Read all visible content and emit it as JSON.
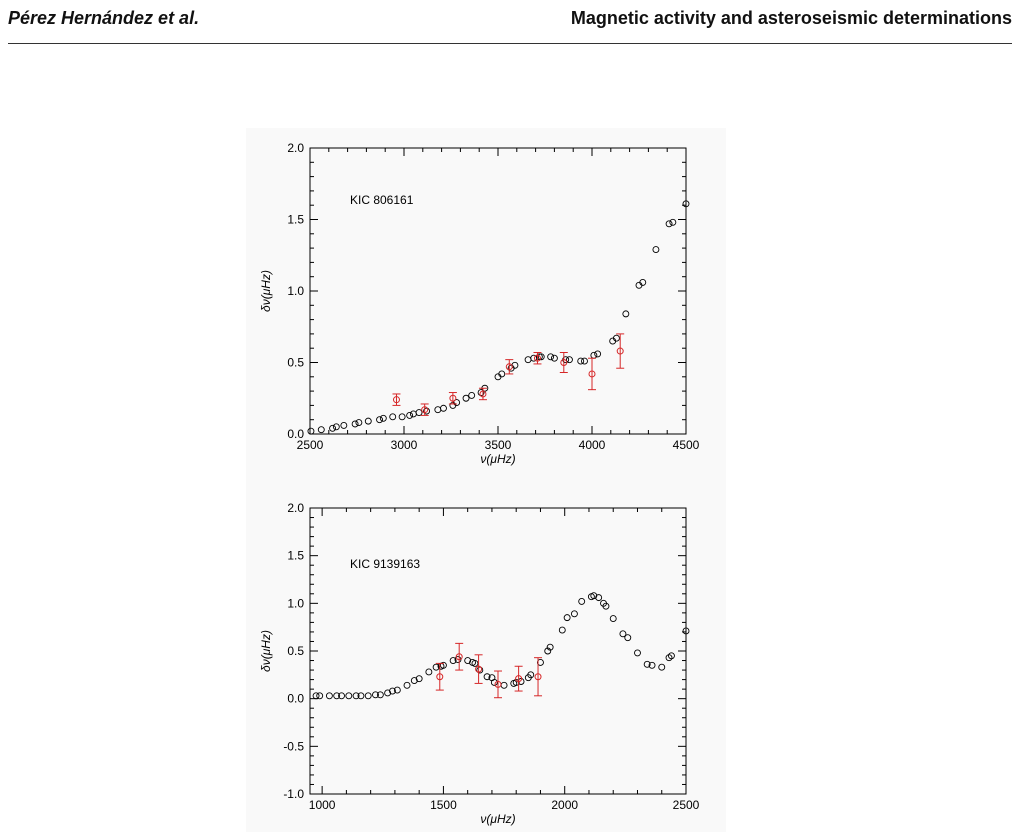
{
  "header": {
    "left": "Pérez Hernández et al.",
    "right": "Magnetic activity and asteroseismic determinations"
  },
  "colors": {
    "model": "#000000",
    "observed": "#d62728"
  },
  "chart_data": [
    {
      "type": "scatter",
      "label": "KIC 806161",
      "xlabel": "ν(μHz)",
      "ylabel": "δν(μHz)",
      "xlim": [
        2500,
        4500
      ],
      "ylim": [
        0.0,
        2.0
      ],
      "xticks": [
        2500,
        3000,
        3500,
        4000,
        4500
      ],
      "yticks": [
        0.0,
        0.5,
        1.0,
        1.5,
        2.0
      ],
      "ytick_labels": [
        "0.0",
        "0.5",
        "1.0",
        "1.5",
        "2.0"
      ],
      "series": [
        {
          "style": "open-circle",
          "x": [
            2505,
            2560,
            2620,
            2640,
            2680,
            2740,
            2760,
            2810,
            2870,
            2890,
            2940,
            2990,
            3030,
            3050,
            3080,
            3120,
            3180,
            3210,
            3260,
            3280,
            3330,
            3360,
            3410,
            3430,
            3500,
            3520,
            3570,
            3590,
            3660,
            3690,
            3720,
            3730,
            3780,
            3800,
            3860,
            3880,
            3940,
            3960,
            4010,
            4030,
            4110,
            4130,
            4180,
            4250,
            4270,
            4340,
            4410,
            4430,
            4500
          ],
          "y": [
            0.02,
            0.03,
            0.04,
            0.05,
            0.06,
            0.07,
            0.08,
            0.09,
            0.1,
            0.11,
            0.12,
            0.12,
            0.13,
            0.14,
            0.15,
            0.16,
            0.17,
            0.18,
            0.2,
            0.22,
            0.25,
            0.27,
            0.29,
            0.32,
            0.4,
            0.42,
            0.46,
            0.48,
            0.52,
            0.53,
            0.54,
            0.54,
            0.54,
            0.53,
            0.52,
            0.52,
            0.51,
            0.51,
            0.55,
            0.56,
            0.65,
            0.67,
            0.84,
            1.04,
            1.06,
            1.29,
            1.47,
            1.48,
            1.61
          ]
        },
        {
          "style": "circle-errorbar",
          "x": [
            2960,
            3110,
            3260,
            3420,
            3560,
            3710,
            3850,
            4000,
            4150
          ],
          "y": [
            0.24,
            0.17,
            0.25,
            0.28,
            0.47,
            0.53,
            0.5,
            0.42,
            0.58
          ],
          "err": [
            0.04,
            0.04,
            0.04,
            0.04,
            0.05,
            0.04,
            0.07,
            0.11,
            0.12
          ]
        }
      ]
    },
    {
      "type": "scatter",
      "label": "KIC 9139163",
      "xlabel": "ν(μHz)",
      "ylabel": "δν(μHz)",
      "xlim": [
        950,
        2500
      ],
      "ylim": [
        -1.0,
        2.0
      ],
      "xticks": [
        1000,
        1500,
        2000,
        2500
      ],
      "yticks": [
        -1.0,
        -0.5,
        0.0,
        0.5,
        1.0,
        1.5,
        2.0
      ],
      "ytick_labels": [
        "-1.0",
        "-0.5",
        "0.0",
        "0.5",
        "1.0",
        "1.5",
        "2.0"
      ],
      "series": [
        {
          "style": "open-circle",
          "x": [
            975,
            990,
            1030,
            1060,
            1080,
            1110,
            1140,
            1160,
            1190,
            1220,
            1240,
            1270,
            1290,
            1310,
            1350,
            1380,
            1400,
            1440,
            1470,
            1490,
            1500,
            1540,
            1560,
            1600,
            1620,
            1630,
            1650,
            1680,
            1700,
            1710,
            1750,
            1790,
            1800,
            1820,
            1850,
            1860,
            1900,
            1930,
            1940,
            1990,
            2010,
            2040,
            2070,
            2110,
            2120,
            2140,
            2160,
            2170,
            2200,
            2240,
            2260,
            2300,
            2340,
            2360,
            2400,
            2430,
            2440,
            2500
          ],
          "y": [
            0.03,
            0.03,
            0.03,
            0.03,
            0.03,
            0.03,
            0.03,
            0.03,
            0.03,
            0.04,
            0.04,
            0.06,
            0.08,
            0.09,
            0.14,
            0.19,
            0.21,
            0.28,
            0.33,
            0.34,
            0.35,
            0.4,
            0.41,
            0.4,
            0.38,
            0.37,
            0.3,
            0.23,
            0.22,
            0.17,
            0.14,
            0.16,
            0.17,
            0.18,
            0.22,
            0.25,
            0.38,
            0.5,
            0.54,
            0.72,
            0.85,
            0.89,
            1.02,
            1.07,
            1.08,
            1.06,
            1.0,
            0.97,
            0.84,
            0.68,
            0.64,
            0.48,
            0.36,
            0.35,
            0.33,
            0.43,
            0.45,
            0.71
          ]
        },
        {
          "style": "circle-errorbar",
          "x": [
            1485,
            1565,
            1645,
            1725,
            1810,
            1890
          ],
          "y": [
            0.23,
            0.44,
            0.31,
            0.15,
            0.21,
            0.23
          ],
          "err": [
            0.14,
            0.14,
            0.15,
            0.14,
            0.13,
            0.2
          ]
        }
      ]
    }
  ]
}
